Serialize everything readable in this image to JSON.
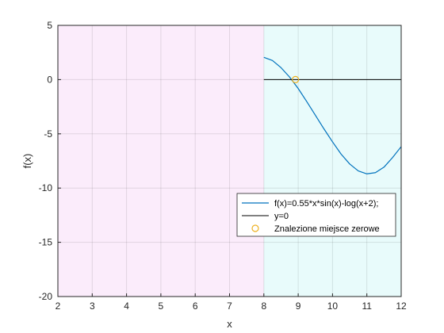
{
  "chart_data": {
    "type": "line",
    "xlabel": "x",
    "ylabel": "f(x)",
    "xlim": [
      2,
      12
    ],
    "ylim": [
      -20,
      5
    ],
    "x_ticks": [
      "2",
      "3",
      "4",
      "5",
      "6",
      "7",
      "8",
      "9",
      "10",
      "11",
      "12"
    ],
    "y_ticks": [
      "5",
      "0",
      "-5",
      "-10",
      "-15",
      "-20"
    ],
    "grid": true,
    "shaded_regions": [
      {
        "x": [
          2,
          8
        ],
        "color": "#fbecfb"
      },
      {
        "x": [
          8,
          12
        ],
        "color": "#e8fbfb"
      }
    ],
    "series": [
      {
        "name": "f(x)=0.55*x*sin(x)-log(x+2);",
        "kind": "line",
        "color": "#0072bd",
        "x": [
          8.0,
          8.25,
          8.5,
          8.75,
          9.0,
          9.25,
          9.5,
          9.75,
          10.0,
          10.25,
          10.5,
          10.75,
          11.0,
          11.25,
          11.5,
          11.75,
          12.0
        ],
        "y": [
          2.05,
          1.76,
          1.1,
          0.23,
          -0.82,
          -2.03,
          -3.28,
          -4.54,
          -5.74,
          -6.87,
          -7.78,
          -8.42,
          -8.69,
          -8.58,
          -8.07,
          -7.18,
          -6.18
        ]
      },
      {
        "name": "y=0",
        "kind": "line",
        "color": "#000000",
        "x": [
          8,
          12
        ],
        "y": [
          0,
          0
        ]
      },
      {
        "name": "Znalezione miejsce zerowe",
        "kind": "marker",
        "color": "#edb120",
        "x": [
          8.92
        ],
        "y": [
          0
        ]
      }
    ],
    "legend_position": "bottom-right"
  }
}
